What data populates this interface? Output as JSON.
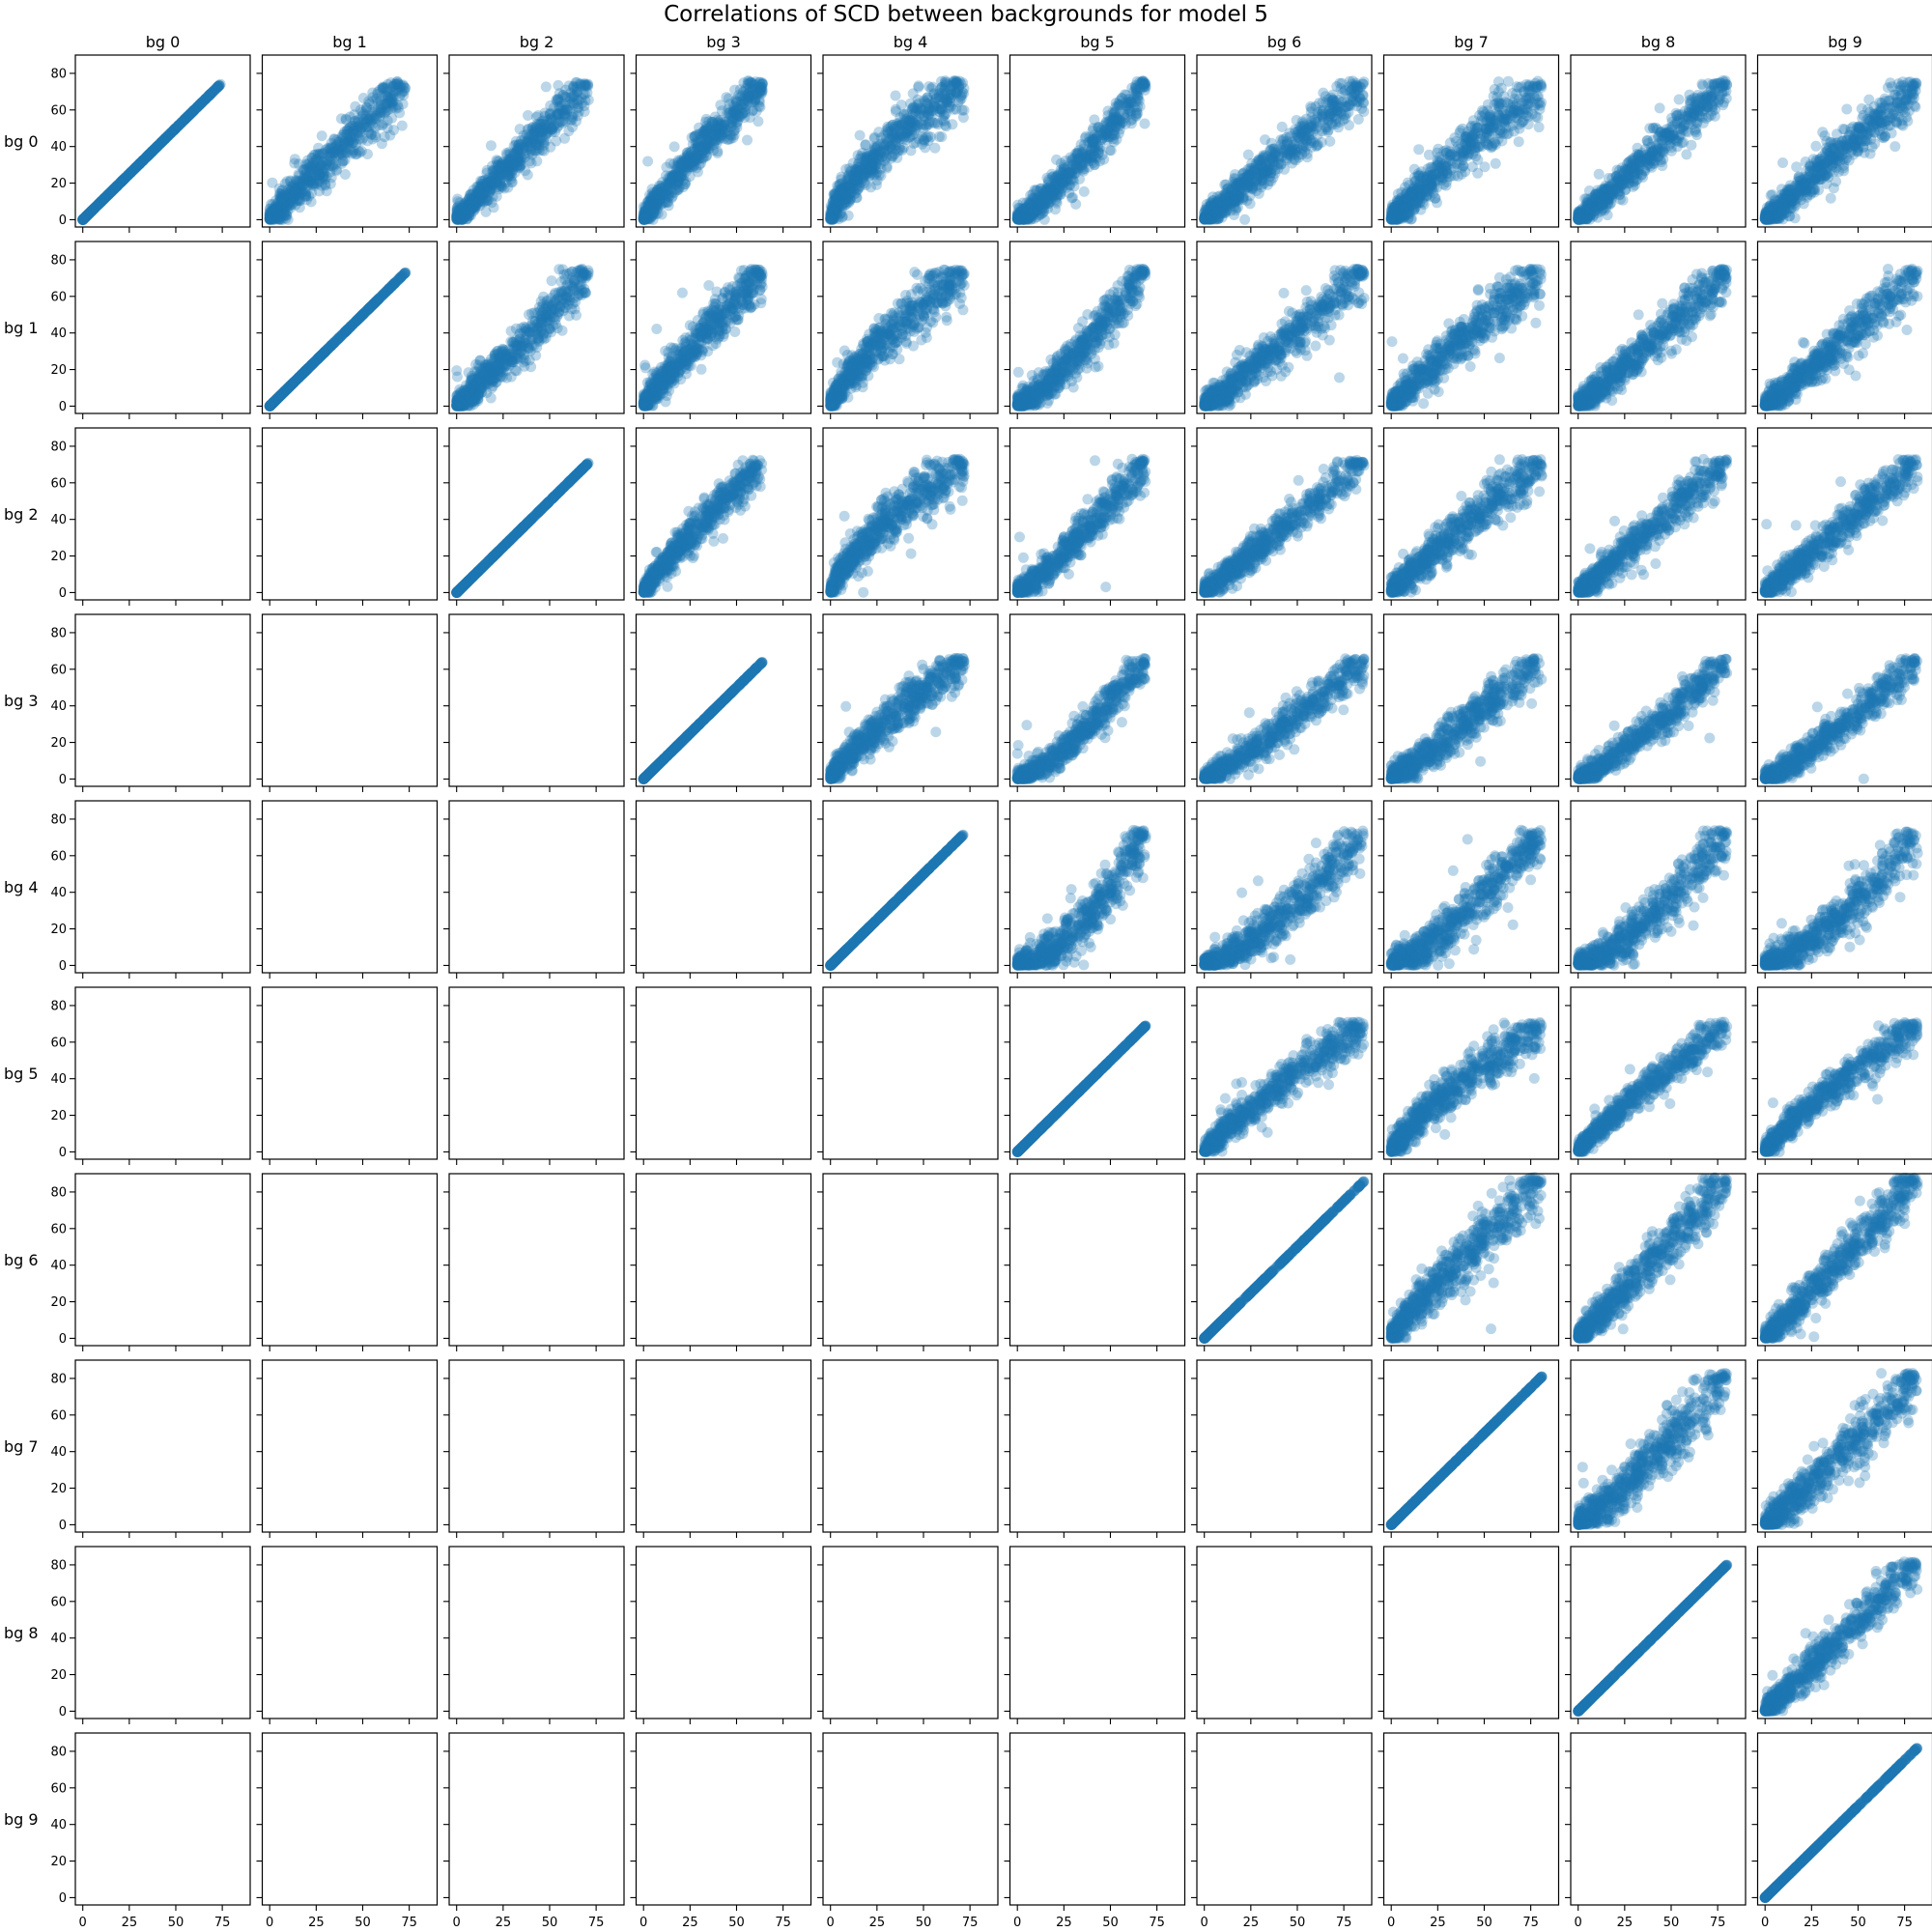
{
  "chart_data": {
    "type": "scatter",
    "title": "Correlations of SCD between backgrounds for model 5",
    "col_labels": [
      "bg 0",
      "bg 1",
      "bg 2",
      "bg 3",
      "bg 4",
      "bg 5",
      "bg 6",
      "bg 7",
      "bg 8",
      "bg 9"
    ],
    "row_labels": [
      "bg 0",
      "bg 1",
      "bg 2",
      "bg 3",
      "bg 4",
      "bg 5",
      "bg 6",
      "bg 7",
      "bg 8",
      "bg 9"
    ],
    "layout": "upper-triangle including diagonal; lower-triangle panels empty",
    "x_ticks": [
      0,
      25,
      50,
      75
    ],
    "y_ticks": [
      0,
      20,
      40,
      60,
      80
    ],
    "xlim": [
      -4,
      90
    ],
    "ylim": [
      -4,
      90
    ],
    "sharex": true,
    "sharey": true,
    "grid": false,
    "marker_color": "#1f77b4",
    "marker_alpha": 0.3,
    "bg_max": [
      74,
      73,
      71,
      64,
      72,
      69,
      86,
      81,
      80,
      82
    ],
    "bg_curve": [
      1.0,
      1.05,
      1.0,
      1.15,
      1.4,
      0.85,
      1.0,
      1.1,
      1.0,
      1.0
    ],
    "bg_noise": [
      0.0,
      0.1,
      0.09,
      0.09,
      0.11,
      0.08,
      0.09,
      0.11,
      0.08,
      0.09
    ],
    "sample_points_per_panel": 700
  }
}
